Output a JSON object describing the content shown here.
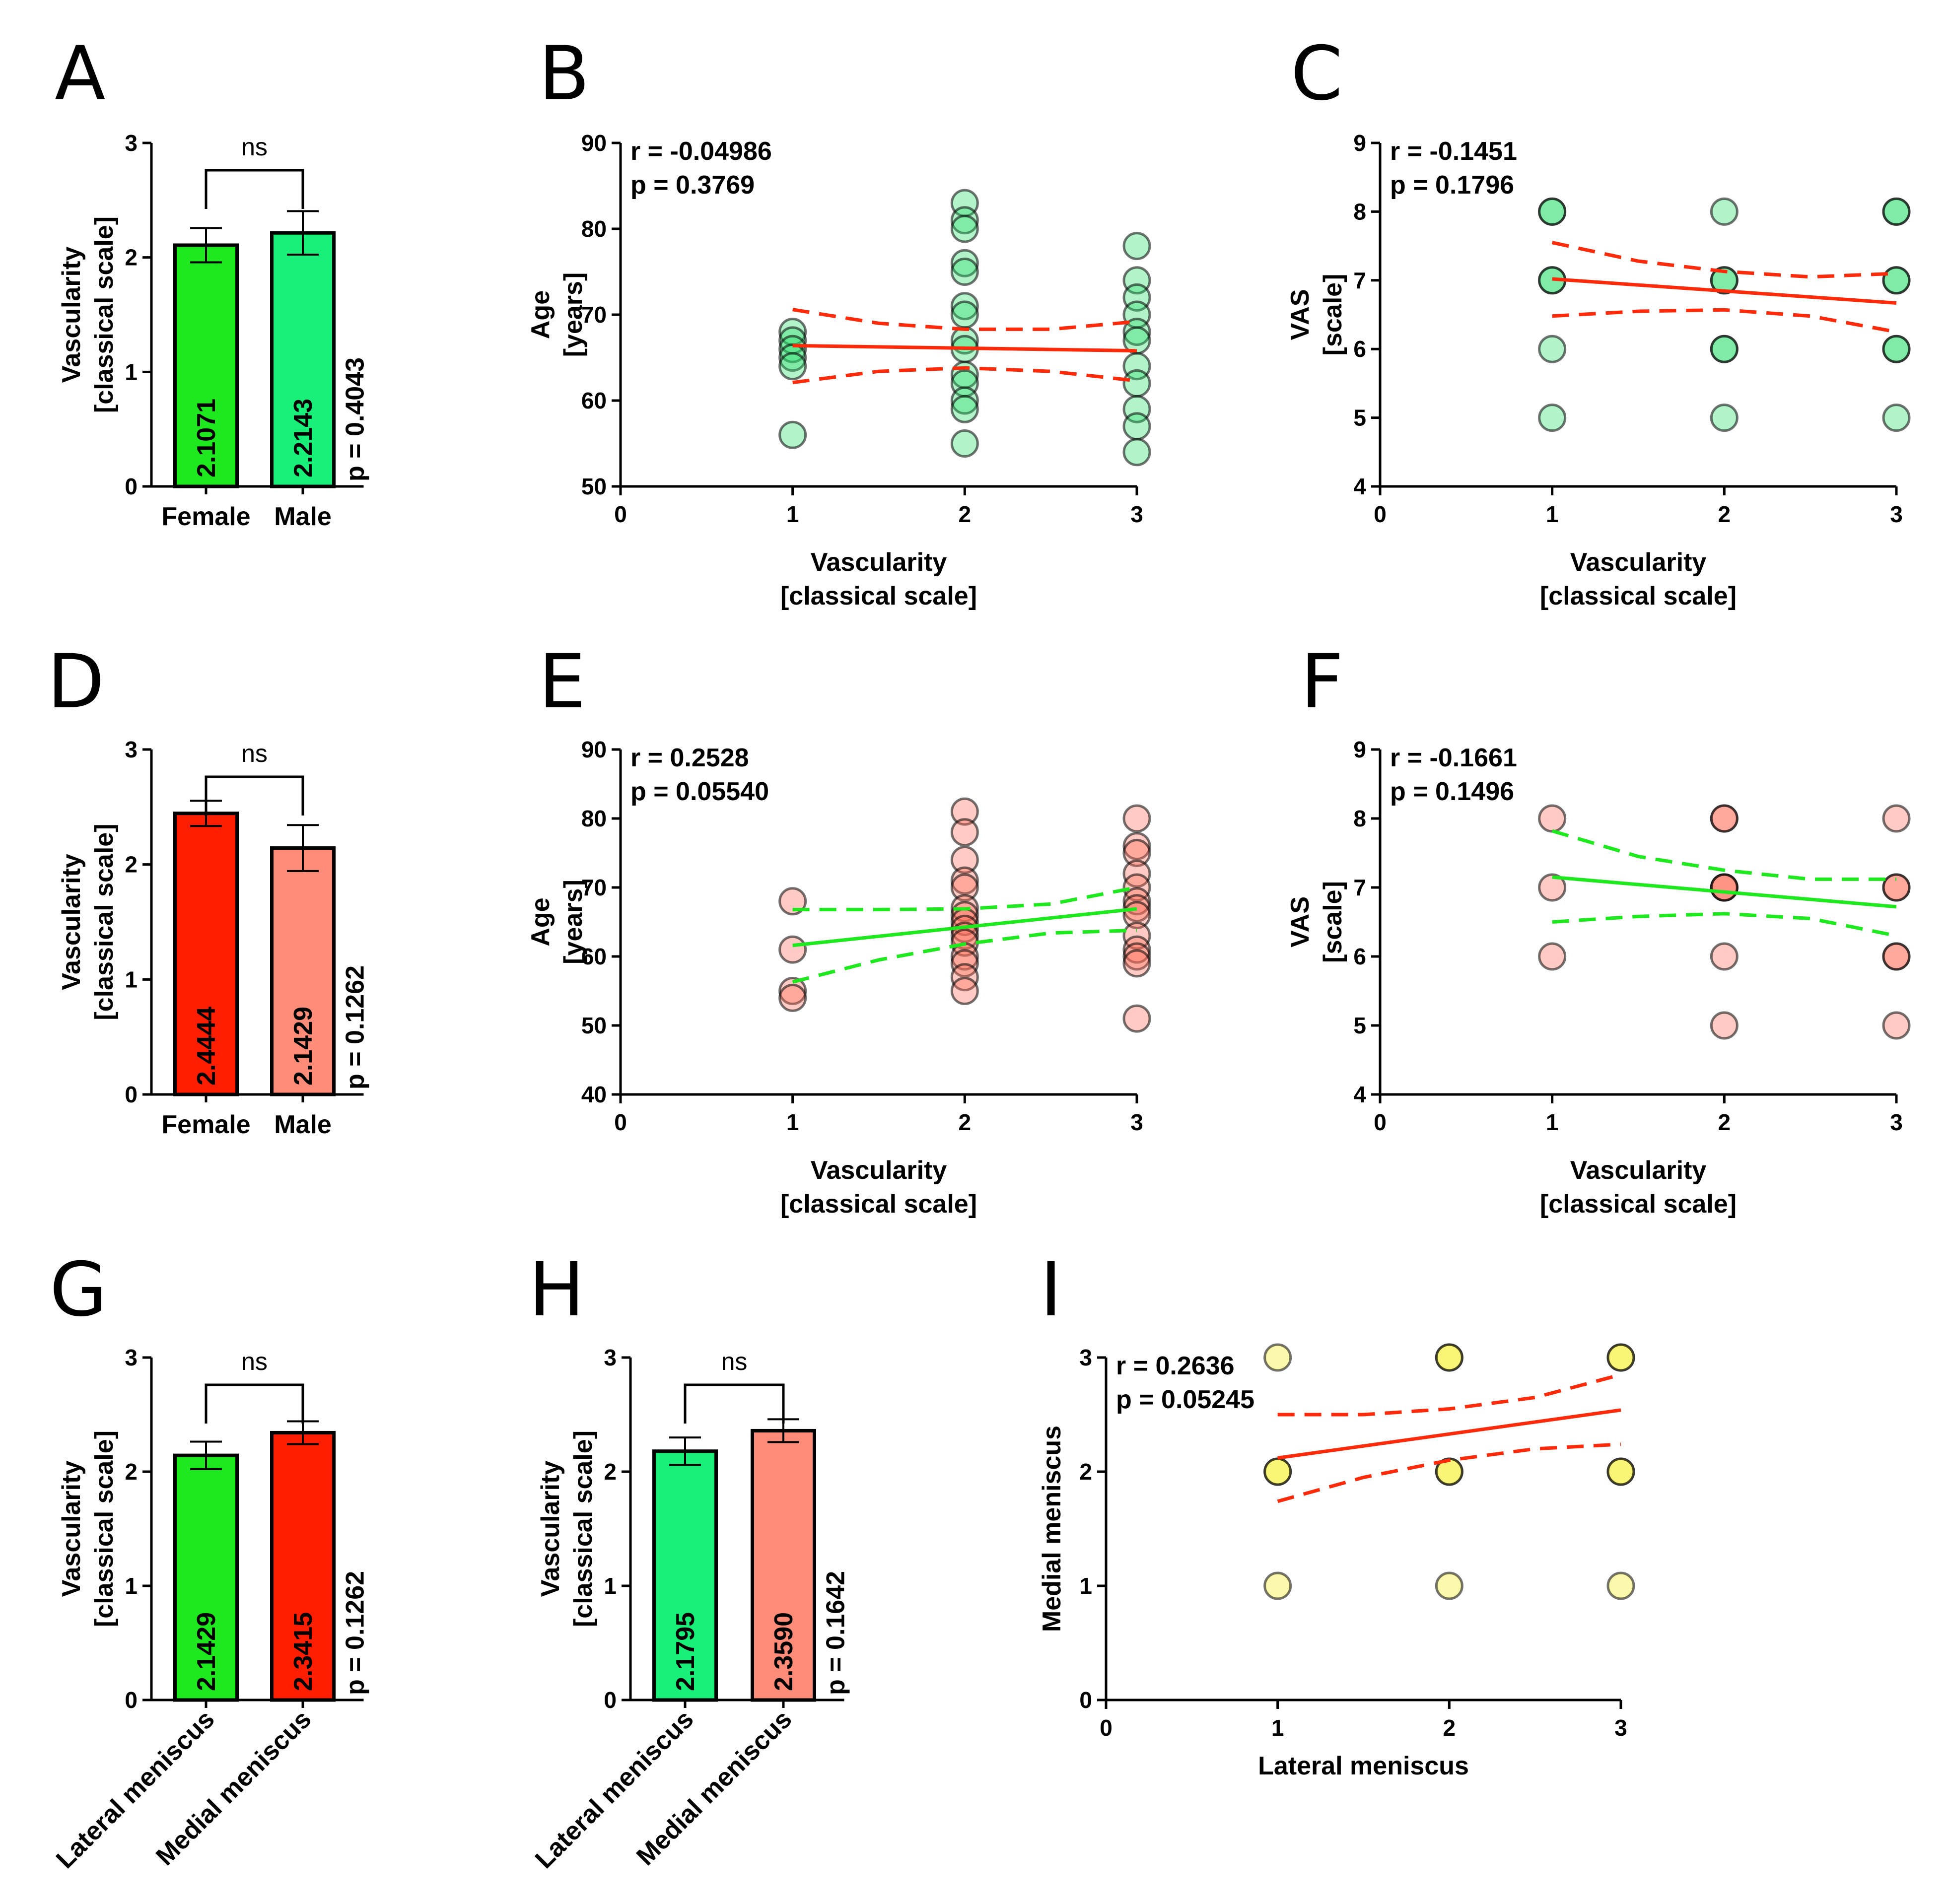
{
  "chart_data": [
    {
      "panel": "A",
      "type": "bar",
      "ylabel": [
        "Vascularity",
        "[classical scale]"
      ],
      "ylim": [
        0,
        3
      ],
      "yticks": [
        0,
        1,
        2,
        3
      ],
      "categories": [
        "Female",
        "Male"
      ],
      "values": [
        2.1071,
        2.2143
      ],
      "value_labels": [
        "2.1071",
        "2.2143"
      ],
      "errors": [
        0.15,
        0.19
      ],
      "colors": [
        "#1ee81e",
        "#19f07a"
      ],
      "significance": "ns",
      "p_text": "p = 0.4043"
    },
    {
      "panel": "B",
      "type": "scatter",
      "xlabel": [
        "Vascularity",
        "[classical scale]"
      ],
      "ylabel": [
        "Age",
        "[years]"
      ],
      "xlim": [
        0,
        3
      ],
      "xticks": [
        0,
        1,
        2,
        3
      ],
      "ylim": [
        50,
        90
      ],
      "yticks": [
        50,
        60,
        70,
        80,
        90
      ],
      "r_text": "r = -0.04986",
      "p_text": "p = 0.3769",
      "point_color": "#22dd66",
      "line_color": "#ff2a0a",
      "points": [
        [
          1,
          68
        ],
        [
          1,
          67
        ],
        [
          1,
          66
        ],
        [
          1,
          65
        ],
        [
          1,
          64
        ],
        [
          1,
          56
        ],
        [
          2,
          83
        ],
        [
          2,
          81
        ],
        [
          2,
          80
        ],
        [
          2,
          76
        ],
        [
          2,
          75
        ],
        [
          2,
          71
        ],
        [
          2,
          70
        ],
        [
          2,
          67
        ],
        [
          2,
          66
        ],
        [
          2,
          63
        ],
        [
          2,
          62
        ],
        [
          2,
          60
        ],
        [
          2,
          59
        ],
        [
          2,
          55
        ],
        [
          3,
          78
        ],
        [
          3,
          74
        ],
        [
          3,
          72
        ],
        [
          3,
          70
        ],
        [
          3,
          68
        ],
        [
          3,
          67
        ],
        [
          3,
          64
        ],
        [
          3,
          62
        ],
        [
          3,
          59
        ],
        [
          3,
          57
        ],
        [
          3,
          54
        ]
      ],
      "fit": {
        "x0": 1,
        "y0": 66.4,
        "x1": 3,
        "y1": 65.8
      },
      "ci_upper": [
        [
          1,
          70.6
        ],
        [
          1.5,
          69.0
        ],
        [
          2,
          68.3
        ],
        [
          2.5,
          68.3
        ],
        [
          3,
          69.2
        ]
      ],
      "ci_lower": [
        [
          1,
          62.1
        ],
        [
          1.5,
          63.4
        ],
        [
          2,
          63.8
        ],
        [
          2.5,
          63.4
        ],
        [
          3,
          62.3
        ]
      ]
    },
    {
      "panel": "C",
      "type": "scatter",
      "xlabel": [
        "Vascularity",
        "[classical scale]"
      ],
      "ylabel": [
        "VAS",
        "[scale]"
      ],
      "xlim": [
        0,
        3
      ],
      "xticks": [
        0,
        1,
        2,
        3
      ],
      "ylim": [
        4,
        9
      ],
      "yticks": [
        4,
        5,
        6,
        7,
        8,
        9
      ],
      "r_text": "r = -0.1451",
      "p_text": "p = 0.1796",
      "point_color": "#22dd66",
      "line_color": "#ff2a0a",
      "points": [
        [
          1,
          8
        ],
        [
          1,
          8
        ],
        [
          1,
          7
        ],
        [
          1,
          7
        ],
        [
          1,
          6
        ],
        [
          1,
          5
        ],
        [
          2,
          8
        ],
        [
          2,
          7
        ],
        [
          2,
          7
        ],
        [
          2,
          6
        ],
        [
          2,
          6
        ],
        [
          2,
          5
        ],
        [
          3,
          8
        ],
        [
          3,
          8
        ],
        [
          3,
          7
        ],
        [
          3,
          7
        ],
        [
          3,
          6
        ],
        [
          3,
          6
        ],
        [
          3,
          5
        ]
      ],
      "fit": {
        "x0": 1,
        "y0": 7.02,
        "x1": 3,
        "y1": 6.67
      },
      "ci_upper": [
        [
          1,
          7.55
        ],
        [
          1.5,
          7.28
        ],
        [
          2,
          7.13
        ],
        [
          2.5,
          7.05
        ],
        [
          3,
          7.1
        ]
      ],
      "ci_lower": [
        [
          1,
          6.48
        ],
        [
          1.5,
          6.55
        ],
        [
          2,
          6.57
        ],
        [
          2.5,
          6.48
        ],
        [
          3,
          6.25
        ]
      ]
    },
    {
      "panel": "D",
      "type": "bar",
      "ylabel": [
        "Vascularity",
        "[classical scale]"
      ],
      "ylim": [
        0,
        3
      ],
      "yticks": [
        0,
        1,
        2,
        3
      ],
      "categories": [
        "Female",
        "Male"
      ],
      "values": [
        2.4444,
        2.1429
      ],
      "value_labels": [
        "2.4444",
        "2.1429"
      ],
      "errors": [
        0.11,
        0.2
      ],
      "colors": [
        "#ff1e00",
        "#ff8c78"
      ],
      "significance": "ns",
      "p_text": "p = 0.1262"
    },
    {
      "panel": "E",
      "type": "scatter",
      "xlabel": [
        "Vascularity",
        "[classical scale]"
      ],
      "ylabel": [
        "Age",
        "[years]"
      ],
      "xlim": [
        0,
        3
      ],
      "xticks": [
        0,
        1,
        2,
        3
      ],
      "ylim": [
        40,
        90
      ],
      "yticks": [
        40,
        50,
        60,
        70,
        80,
        90
      ],
      "r_text": "r = 0.2528",
      "p_text": "p = 0.05540",
      "point_color": "#ff6a55",
      "line_color": "#1ee81e",
      "points": [
        [
          1,
          68
        ],
        [
          1,
          61
        ],
        [
          1,
          55
        ],
        [
          1,
          54
        ],
        [
          2,
          81
        ],
        [
          2,
          78
        ],
        [
          2,
          74
        ],
        [
          2,
          71
        ],
        [
          2,
          70
        ],
        [
          2,
          67
        ],
        [
          2,
          66
        ],
        [
          2,
          65
        ],
        [
          2,
          64
        ],
        [
          2,
          63
        ],
        [
          2,
          62
        ],
        [
          2,
          60
        ],
        [
          2,
          59
        ],
        [
          2,
          57
        ],
        [
          2,
          55
        ],
        [
          3,
          80
        ],
        [
          3,
          76
        ],
        [
          3,
          75
        ],
        [
          3,
          72
        ],
        [
          3,
          70
        ],
        [
          3,
          68
        ],
        [
          3,
          67
        ],
        [
          3,
          66
        ],
        [
          3,
          63
        ],
        [
          3,
          61
        ],
        [
          3,
          60
        ],
        [
          3,
          59
        ],
        [
          3,
          51
        ]
      ],
      "fit": {
        "x0": 1,
        "y0": 61.6,
        "x1": 3,
        "y1": 66.9
      },
      "ci_upper": [
        [
          1,
          66.8
        ],
        [
          1.5,
          66.8
        ],
        [
          2,
          66.9
        ],
        [
          2.5,
          67.6
        ],
        [
          3,
          70.0
        ]
      ],
      "ci_lower": [
        [
          1,
          56.3
        ],
        [
          1.5,
          59.5
        ],
        [
          2,
          61.8
        ],
        [
          2.5,
          63.4
        ],
        [
          3,
          63.8
        ]
      ]
    },
    {
      "panel": "F",
      "type": "scatter",
      "xlabel": [
        "Vascularity",
        "[classical scale]"
      ],
      "ylabel": [
        "VAS",
        "[scale]"
      ],
      "xlim": [
        0,
        3
      ],
      "xticks": [
        0,
        1,
        2,
        3
      ],
      "ylim": [
        4,
        9
      ],
      "yticks": [
        4,
        5,
        6,
        7,
        8,
        9
      ],
      "r_text": "r = -0.1661",
      "p_text": "p = 0.1496",
      "point_color": "#ff6a55",
      "line_color": "#1ee81e",
      "points": [
        [
          1,
          8
        ],
        [
          1,
          7
        ],
        [
          1,
          6
        ],
        [
          2,
          8
        ],
        [
          2,
          8
        ],
        [
          2,
          7
        ],
        [
          2,
          7
        ],
        [
          2,
          7
        ],
        [
          2,
          6
        ],
        [
          2,
          5
        ],
        [
          3,
          8
        ],
        [
          3,
          7
        ],
        [
          3,
          7
        ],
        [
          3,
          6
        ],
        [
          3,
          6
        ],
        [
          3,
          5
        ]
      ],
      "fit": {
        "x0": 1,
        "y0": 7.15,
        "x1": 3,
        "y1": 6.72
      },
      "ci_upper": [
        [
          1,
          7.82
        ],
        [
          1.5,
          7.45
        ],
        [
          2,
          7.25
        ],
        [
          2.5,
          7.12
        ],
        [
          3,
          7.12
        ]
      ],
      "ci_lower": [
        [
          1,
          6.5
        ],
        [
          1.5,
          6.58
        ],
        [
          2,
          6.62
        ],
        [
          2.5,
          6.55
        ],
        [
          3,
          6.3
        ]
      ]
    },
    {
      "panel": "G",
      "type": "bar",
      "ylabel": [
        "Vascularity",
        "[classical scale]"
      ],
      "ylim": [
        0,
        3
      ],
      "yticks": [
        0,
        1,
        2,
        3
      ],
      "categories": [
        "Lateral meniscus",
        "Medial meniscus"
      ],
      "values": [
        2.1429,
        2.3415
      ],
      "value_labels": [
        "2.1429",
        "2.3415"
      ],
      "errors": [
        0.12,
        0.1
      ],
      "colors": [
        "#1ee81e",
        "#ff1e00"
      ],
      "significance": "ns",
      "p_text": "p = 0.1262"
    },
    {
      "panel": "H",
      "type": "bar",
      "ylabel": [
        "Vascularity",
        "[classical scale]"
      ],
      "ylim": [
        0,
        3
      ],
      "yticks": [
        0,
        1,
        2,
        3
      ],
      "categories": [
        "Lateral meniscus",
        "Medial meniscus"
      ],
      "values": [
        2.1795,
        2.359
      ],
      "value_labels": [
        "2.1795",
        "2.3590"
      ],
      "errors": [
        0.12,
        0.1
      ],
      "colors": [
        "#19f07a",
        "#ff8c78"
      ],
      "significance": "ns",
      "p_text": "p = 0.1642"
    },
    {
      "panel": "I",
      "type": "scatter",
      "xlabel": [
        "Lateral meniscus"
      ],
      "ylabel": [
        "Medial meniscus"
      ],
      "xlim": [
        0,
        3
      ],
      "xticks": [
        0,
        1,
        2,
        3
      ],
      "ylim": [
        0,
        3
      ],
      "yticks": [
        0,
        1,
        2,
        3
      ],
      "r_text": "r = 0.2636",
      "p_text": "p = 0.05245",
      "point_color": "#f5ee10",
      "line_color": "#ff2a0a",
      "points": [
        [
          1,
          3
        ],
        [
          1,
          2
        ],
        [
          1,
          2
        ],
        [
          1,
          1
        ],
        [
          2,
          3
        ],
        [
          2,
          3
        ],
        [
          2,
          2
        ],
        [
          2,
          2
        ],
        [
          2,
          1
        ],
        [
          3,
          3
        ],
        [
          3,
          3
        ],
        [
          3,
          2
        ],
        [
          3,
          2
        ],
        [
          3,
          1
        ]
      ],
      "fit": {
        "x0": 1,
        "y0": 2.12,
        "x1": 3,
        "y1": 2.54
      },
      "ci_upper": [
        [
          1,
          2.5
        ],
        [
          1.5,
          2.5
        ],
        [
          2,
          2.55
        ],
        [
          2.5,
          2.65
        ],
        [
          3,
          2.85
        ]
      ],
      "ci_lower": [
        [
          1,
          1.74
        ],
        [
          1.5,
          1.95
        ],
        [
          2,
          2.1
        ],
        [
          2.5,
          2.2
        ],
        [
          3,
          2.24
        ]
      ]
    }
  ]
}
